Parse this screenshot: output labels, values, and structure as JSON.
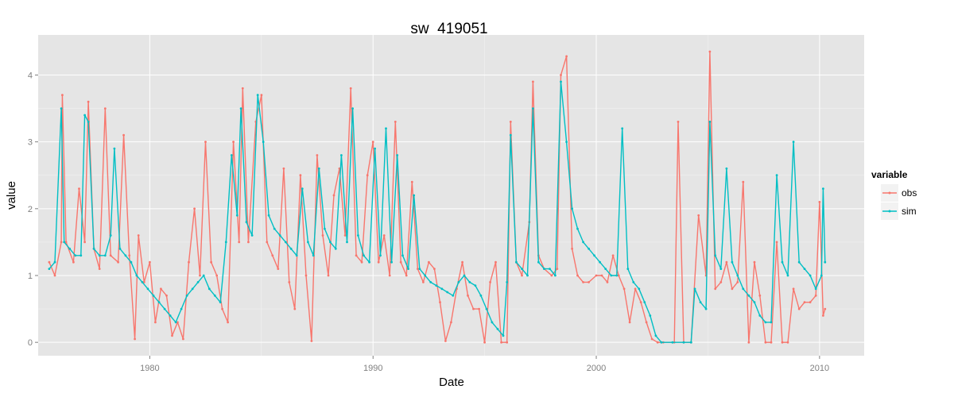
{
  "chart_data": {
    "type": "line",
    "title": "sw_419051",
    "xlabel": "Date",
    "ylabel": "value",
    "x_axis_type": "date",
    "xlim": [
      "1975-01-01",
      "2012-01-01"
    ],
    "ylim": [
      -0.2,
      4.6
    ],
    "x_ticks": [
      {
        "date": "1980-01-01",
        "label": "1980"
      },
      {
        "date": "1990-01-01",
        "label": "1990"
      },
      {
        "date": "2000-01-01",
        "label": "2000"
      },
      {
        "date": "2010-01-01",
        "label": "2010"
      }
    ],
    "y_ticks": [
      0,
      1,
      2,
      3,
      4
    ],
    "grid": true,
    "panel_background": "#e5e5e5",
    "legend": {
      "title": "variable",
      "position": "right"
    },
    "series": [
      {
        "name": "obs",
        "color": "#F8766D",
        "points": [
          [
            "1975-07-01",
            1.2
          ],
          [
            "1975-10-01",
            1.0
          ],
          [
            "1976-01-15",
            1.5
          ],
          [
            "1976-02-01",
            3.7
          ],
          [
            "1976-04-01",
            1.5
          ],
          [
            "1976-08-01",
            1.2
          ],
          [
            "1976-11-01",
            2.3
          ],
          [
            "1977-02-01",
            1.5
          ],
          [
            "1977-04-01",
            3.6
          ],
          [
            "1977-07-01",
            1.4
          ],
          [
            "1977-10-01",
            1.1
          ],
          [
            "1978-01-01",
            3.5
          ],
          [
            "1978-04-01",
            1.3
          ],
          [
            "1978-08-01",
            1.2
          ],
          [
            "1978-11-01",
            3.1
          ],
          [
            "1979-02-01",
            1.3
          ],
          [
            "1979-05-01",
            0.05
          ],
          [
            "1979-07-01",
            1.6
          ],
          [
            "1979-10-01",
            0.9
          ],
          [
            "1980-01-01",
            1.2
          ],
          [
            "1980-04-01",
            0.3
          ],
          [
            "1980-07-01",
            0.8
          ],
          [
            "1980-10-01",
            0.7
          ],
          [
            "1981-01-01",
            0.1
          ],
          [
            "1981-04-01",
            0.3
          ],
          [
            "1981-07-01",
            0.05
          ],
          [
            "1981-10-01",
            1.2
          ],
          [
            "1982-01-01",
            2.0
          ],
          [
            "1982-04-01",
            1.0
          ],
          [
            "1982-07-01",
            3.0
          ],
          [
            "1982-10-01",
            1.2
          ],
          [
            "1983-01-01",
            1.0
          ],
          [
            "1983-04-01",
            0.5
          ],
          [
            "1983-07-01",
            0.3
          ],
          [
            "1983-10-01",
            3.0
          ],
          [
            "1984-01-01",
            1.5
          ],
          [
            "1984-03-01",
            3.8
          ],
          [
            "1984-06-01",
            1.5
          ],
          [
            "1984-10-01",
            3.3
          ],
          [
            "1985-01-01",
            3.7
          ],
          [
            "1985-04-01",
            1.5
          ],
          [
            "1985-07-01",
            1.3
          ],
          [
            "1985-10-01",
            1.1
          ],
          [
            "1986-01-01",
            2.6
          ],
          [
            "1986-04-01",
            0.9
          ],
          [
            "1986-07-01",
            0.5
          ],
          [
            "1986-10-01",
            2.5
          ],
          [
            "1987-01-01",
            1.0
          ],
          [
            "1987-04-01",
            0.02
          ],
          [
            "1987-07-01",
            2.8
          ],
          [
            "1987-10-01",
            1.6
          ],
          [
            "1988-01-01",
            1.0
          ],
          [
            "1988-04-01",
            2.2
          ],
          [
            "1988-07-01",
            2.6
          ],
          [
            "1988-10-01",
            1.6
          ],
          [
            "1989-01-01",
            3.8
          ],
          [
            "1989-04-01",
            1.3
          ],
          [
            "1989-07-01",
            1.2
          ],
          [
            "1989-10-01",
            2.5
          ],
          [
            "1990-01-01",
            3.0
          ],
          [
            "1990-04-01",
            1.2
          ],
          [
            "1990-07-01",
            1.6
          ],
          [
            "1990-10-01",
            1.0
          ],
          [
            "1991-01-01",
            3.3
          ],
          [
            "1991-04-01",
            1.2
          ],
          [
            "1991-07-01",
            1.0
          ],
          [
            "1991-10-01",
            2.4
          ],
          [
            "1992-01-01",
            1.1
          ],
          [
            "1992-04-01",
            0.9
          ],
          [
            "1992-07-01",
            1.2
          ],
          [
            "1992-10-01",
            1.1
          ],
          [
            "1993-01-01",
            0.6
          ],
          [
            "1993-04-01",
            0.02
          ],
          [
            "1993-07-01",
            0.3
          ],
          [
            "1993-10-01",
            0.8
          ],
          [
            "1994-01-01",
            1.2
          ],
          [
            "1994-04-01",
            0.7
          ],
          [
            "1994-07-01",
            0.5
          ],
          [
            "1994-10-01",
            0.5
          ],
          [
            "1995-01-01",
            0.0
          ],
          [
            "1995-04-01",
            0.9
          ],
          [
            "1995-07-01",
            1.2
          ],
          [
            "1995-10-01",
            0.0
          ],
          [
            "1996-01-01",
            0.0
          ],
          [
            "1996-03-01",
            3.3
          ],
          [
            "1996-06-01",
            1.2
          ],
          [
            "1996-09-01",
            1.0
          ],
          [
            "1997-01-01",
            1.8
          ],
          [
            "1997-03-01",
            3.9
          ],
          [
            "1997-06-01",
            1.3
          ],
          [
            "1997-09-01",
            1.1
          ],
          [
            "1998-01-01",
            1.0
          ],
          [
            "1998-04-01",
            1.1
          ],
          [
            "1998-06-01",
            4.0
          ],
          [
            "1998-09-01",
            4.28
          ],
          [
            "1998-12-01",
            1.4
          ],
          [
            "1999-03-01",
            1.0
          ],
          [
            "1999-06-01",
            0.9
          ],
          [
            "1999-09-01",
            0.9
          ],
          [
            "2000-01-01",
            1.0
          ],
          [
            "2000-04-01",
            1.0
          ],
          [
            "2000-07-01",
            0.9
          ],
          [
            "2000-10-01",
            1.3
          ],
          [
            "2001-01-01",
            1.0
          ],
          [
            "2001-04-01",
            0.8
          ],
          [
            "2001-07-01",
            0.3
          ],
          [
            "2001-10-01",
            0.8
          ],
          [
            "2002-01-01",
            0.6
          ],
          [
            "2002-04-01",
            0.3
          ],
          [
            "2002-07-01",
            0.05
          ],
          [
            "2002-10-01",
            0.0
          ],
          [
            "2003-01-01",
            0.0
          ],
          [
            "2003-07-01",
            0.0
          ],
          [
            "2003-09-01",
            3.3
          ],
          [
            "2003-12-01",
            0.0
          ],
          [
            "2004-04-01",
            0.0
          ],
          [
            "2004-08-01",
            1.9
          ],
          [
            "2004-12-01",
            1.0
          ],
          [
            "2005-02-01",
            4.35
          ],
          [
            "2005-05-01",
            0.8
          ],
          [
            "2005-08-01",
            0.9
          ],
          [
            "2005-11-01",
            1.2
          ],
          [
            "2006-02-01",
            0.8
          ],
          [
            "2006-05-01",
            0.9
          ],
          [
            "2006-08-01",
            2.4
          ],
          [
            "2006-11-01",
            0.0
          ],
          [
            "2007-02-01",
            1.2
          ],
          [
            "2007-05-01",
            0.7
          ],
          [
            "2007-08-01",
            0.0
          ],
          [
            "2007-11-01",
            0.0
          ],
          [
            "2008-02-01",
            1.5
          ],
          [
            "2008-05-01",
            0.0
          ],
          [
            "2008-08-01",
            0.0
          ],
          [
            "2008-11-01",
            0.8
          ],
          [
            "2009-02-01",
            0.5
          ],
          [
            "2009-05-01",
            0.6
          ],
          [
            "2009-08-01",
            0.6
          ],
          [
            "2009-11-01",
            0.7
          ],
          [
            "2010-01-01",
            2.1
          ],
          [
            "2010-03-01",
            0.4
          ],
          [
            "2010-04-01",
            0.5
          ]
        ]
      },
      {
        "name": "sim",
        "color": "#00BFC4",
        "points": [
          [
            "1975-07-01",
            1.1
          ],
          [
            "1975-10-01",
            1.2
          ],
          [
            "1976-01-15",
            3.5
          ],
          [
            "1976-03-01",
            1.5
          ],
          [
            "1976-06-01",
            1.4
          ],
          [
            "1976-09-01",
            1.3
          ],
          [
            "1976-12-01",
            1.3
          ],
          [
            "1977-02-01",
            3.4
          ],
          [
            "1977-04-01",
            3.3
          ],
          [
            "1977-07-01",
            1.4
          ],
          [
            "1977-10-01",
            1.3
          ],
          [
            "1978-01-01",
            1.3
          ],
          [
            "1978-04-01",
            1.6
          ],
          [
            "1978-06-01",
            2.9
          ],
          [
            "1978-09-01",
            1.4
          ],
          [
            "1978-12-01",
            1.3
          ],
          [
            "1979-03-01",
            1.2
          ],
          [
            "1979-06-01",
            1.0
          ],
          [
            "1979-09-01",
            0.9
          ],
          [
            "1979-12-01",
            0.8
          ],
          [
            "1980-03-01",
            0.7
          ],
          [
            "1980-06-01",
            0.6
          ],
          [
            "1980-09-01",
            0.5
          ],
          [
            "1980-12-01",
            0.4
          ],
          [
            "1981-03-01",
            0.3
          ],
          [
            "1981-06-01",
            0.5
          ],
          [
            "1981-09-01",
            0.7
          ],
          [
            "1981-12-01",
            0.8
          ],
          [
            "1982-03-01",
            0.9
          ],
          [
            "1982-06-01",
            1.0
          ],
          [
            "1982-09-01",
            0.8
          ],
          [
            "1982-12-01",
            0.7
          ],
          [
            "1983-03-01",
            0.6
          ],
          [
            "1983-06-01",
            1.5
          ],
          [
            "1983-09-01",
            2.8
          ],
          [
            "1983-12-01",
            1.9
          ],
          [
            "1984-02-01",
            3.5
          ],
          [
            "1984-05-01",
            1.8
          ],
          [
            "1984-08-01",
            1.6
          ],
          [
            "1984-11-01",
            3.7
          ],
          [
            "1985-02-01",
            3.0
          ],
          [
            "1985-05-01",
            1.9
          ],
          [
            "1985-08-01",
            1.7
          ],
          [
            "1985-11-01",
            1.6
          ],
          [
            "1986-02-01",
            1.5
          ],
          [
            "1986-05-01",
            1.4
          ],
          [
            "1986-08-01",
            1.3
          ],
          [
            "1986-11-01",
            2.3
          ],
          [
            "1987-02-01",
            1.5
          ],
          [
            "1987-05-01",
            1.3
          ],
          [
            "1987-08-01",
            2.6
          ],
          [
            "1987-11-01",
            1.7
          ],
          [
            "1988-02-01",
            1.5
          ],
          [
            "1988-05-01",
            1.4
          ],
          [
            "1988-08-01",
            2.8
          ],
          [
            "1988-11-01",
            1.5
          ],
          [
            "1989-02-01",
            3.5
          ],
          [
            "1989-05-01",
            1.6
          ],
          [
            "1989-08-01",
            1.3
          ],
          [
            "1989-11-01",
            1.2
          ],
          [
            "1990-02-01",
            2.9
          ],
          [
            "1990-05-01",
            1.3
          ],
          [
            "1990-08-01",
            3.2
          ],
          [
            "1990-11-01",
            1.2
          ],
          [
            "1991-02-01",
            2.8
          ],
          [
            "1991-05-01",
            1.3
          ],
          [
            "1991-08-01",
            1.1
          ],
          [
            "1991-11-01",
            2.2
          ],
          [
            "1992-02-01",
            1.1
          ],
          [
            "1992-05-01",
            1.0
          ],
          [
            "1992-08-01",
            0.9
          ],
          [
            "1992-11-01",
            0.85
          ],
          [
            "1993-02-01",
            0.8
          ],
          [
            "1993-05-01",
            0.75
          ],
          [
            "1993-08-01",
            0.7
          ],
          [
            "1993-11-01",
            0.9
          ],
          [
            "1994-02-01",
            1.0
          ],
          [
            "1994-05-01",
            0.9
          ],
          [
            "1994-08-01",
            0.85
          ],
          [
            "1994-11-01",
            0.7
          ],
          [
            "1995-02-01",
            0.5
          ],
          [
            "1995-05-01",
            0.3
          ],
          [
            "1995-08-01",
            0.2
          ],
          [
            "1995-11-01",
            0.1
          ],
          [
            "1996-01-01",
            0.9
          ],
          [
            "1996-03-01",
            3.1
          ],
          [
            "1996-06-01",
            1.2
          ],
          [
            "1996-09-01",
            1.1
          ],
          [
            "1996-12-01",
            1.0
          ],
          [
            "1997-03-01",
            3.5
          ],
          [
            "1997-06-01",
            1.2
          ],
          [
            "1997-09-01",
            1.1
          ],
          [
            "1997-12-01",
            1.1
          ],
          [
            "1998-03-01",
            1.0
          ],
          [
            "1998-06-01",
            3.9
          ],
          [
            "1998-09-01",
            3.0
          ],
          [
            "1998-12-01",
            2.0
          ],
          [
            "1999-03-01",
            1.7
          ],
          [
            "1999-06-01",
            1.5
          ],
          [
            "1999-09-01",
            1.4
          ],
          [
            "1999-12-01",
            1.3
          ],
          [
            "2000-03-01",
            1.2
          ],
          [
            "2000-06-01",
            1.1
          ],
          [
            "2000-09-01",
            1.0
          ],
          [
            "2000-12-01",
            1.0
          ],
          [
            "2001-03-01",
            3.2
          ],
          [
            "2001-06-01",
            1.1
          ],
          [
            "2001-09-01",
            0.9
          ],
          [
            "2001-12-01",
            0.8
          ],
          [
            "2002-03-01",
            0.6
          ],
          [
            "2002-06-01",
            0.4
          ],
          [
            "2002-09-01",
            0.1
          ],
          [
            "2002-12-01",
            0.0
          ],
          [
            "2003-06-01",
            0.0
          ],
          [
            "2003-12-01",
            0.0
          ],
          [
            "2004-04-01",
            0.0
          ],
          [
            "2004-06-01",
            0.8
          ],
          [
            "2004-09-01",
            0.6
          ],
          [
            "2004-12-01",
            0.5
          ],
          [
            "2005-02-01",
            3.3
          ],
          [
            "2005-05-01",
            1.3
          ],
          [
            "2005-08-01",
            1.1
          ],
          [
            "2005-11-01",
            2.6
          ],
          [
            "2006-02-01",
            1.2
          ],
          [
            "2006-05-01",
            1.0
          ],
          [
            "2006-08-01",
            0.8
          ],
          [
            "2006-11-01",
            0.7
          ],
          [
            "2007-02-01",
            0.6
          ],
          [
            "2007-05-01",
            0.4
          ],
          [
            "2007-08-01",
            0.3
          ],
          [
            "2007-11-01",
            0.3
          ],
          [
            "2008-02-01",
            2.5
          ],
          [
            "2008-05-01",
            1.2
          ],
          [
            "2008-08-01",
            1.0
          ],
          [
            "2008-11-01",
            3.0
          ],
          [
            "2009-02-01",
            1.2
          ],
          [
            "2009-05-01",
            1.1
          ],
          [
            "2009-08-01",
            1.0
          ],
          [
            "2009-11-01",
            0.8
          ],
          [
            "2010-02-01",
            1.0
          ],
          [
            "2010-03-01",
            2.3
          ],
          [
            "2010-04-01",
            1.2
          ]
        ]
      }
    ]
  }
}
